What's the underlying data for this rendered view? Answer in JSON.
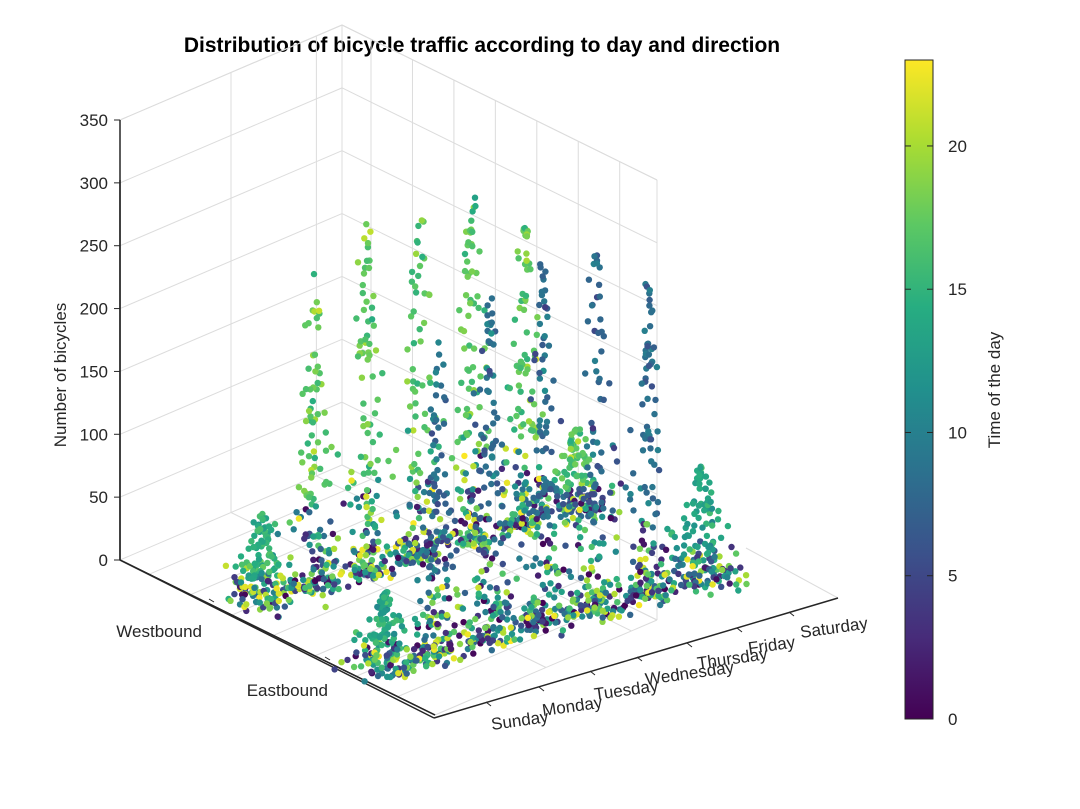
{
  "chart_data": {
    "type": "scatter3d",
    "title": "Distribution of bicycle traffic according to day and direction",
    "zlabel": "Number of bicycles",
    "zlim": [
      0,
      350
    ],
    "zticks": [
      "0",
      "50",
      "100",
      "150",
      "200",
      "250",
      "300",
      "350"
    ],
    "days": [
      "Sunday",
      "Monday",
      "Tuesday",
      "Wednesday",
      "Thursday",
      "Friday",
      "Saturday"
    ],
    "directions": [
      "Westbound",
      "Eastbound"
    ],
    "grid": true,
    "colorbar": {
      "label": "Time of the day",
      "range": [
        0,
        23
      ],
      "ticks": [
        "0",
        "5",
        "10",
        "15",
        "20"
      ],
      "colormap": [
        "#440154",
        "#472c7a",
        "#3b518b",
        "#2c718e",
        "#21908d",
        "#27ad81",
        "#5cc863",
        "#aadc32",
        "#fde725"
      ]
    },
    "series": [
      {
        "direction": "Westbound",
        "day": "Sunday",
        "max_count": 70,
        "peak_hour": 15
      },
      {
        "direction": "Westbound",
        "day": "Monday",
        "max_count": 250,
        "peak_hour": 17
      },
      {
        "direction": "Westbound",
        "day": "Tuesday",
        "max_count": 285,
        "peak_hour": 17
      },
      {
        "direction": "Westbound",
        "day": "Wednesday",
        "max_count": 270,
        "peak_hour": 17
      },
      {
        "direction": "Westbound",
        "day": "Thursday",
        "max_count": 300,
        "peak_hour": 17
      },
      {
        "direction": "Westbound",
        "day": "Friday",
        "max_count": 250,
        "peak_hour": 17
      },
      {
        "direction": "Westbound",
        "day": "Saturday",
        "max_count": 70,
        "peak_hour": 17
      },
      {
        "direction": "Eastbound",
        "day": "Sunday",
        "max_count": 60,
        "peak_hour": 14
      },
      {
        "direction": "Eastbound",
        "day": "Monday",
        "max_count": 255,
        "peak_hour": 8
      },
      {
        "direction": "Eastbound",
        "day": "Tuesday",
        "max_count": 280,
        "peak_hour": 8
      },
      {
        "direction": "Eastbound",
        "day": "Wednesday",
        "max_count": 305,
        "peak_hour": 8
      },
      {
        "direction": "Eastbound",
        "day": "Thursday",
        "max_count": 285,
        "peak_hour": 8
      },
      {
        "direction": "Eastbound",
        "day": "Friday",
        "max_count": 250,
        "peak_hour": 8
      },
      {
        "direction": "Eastbound",
        "day": "Saturday",
        "max_count": 90,
        "peak_hour": 14
      }
    ]
  }
}
